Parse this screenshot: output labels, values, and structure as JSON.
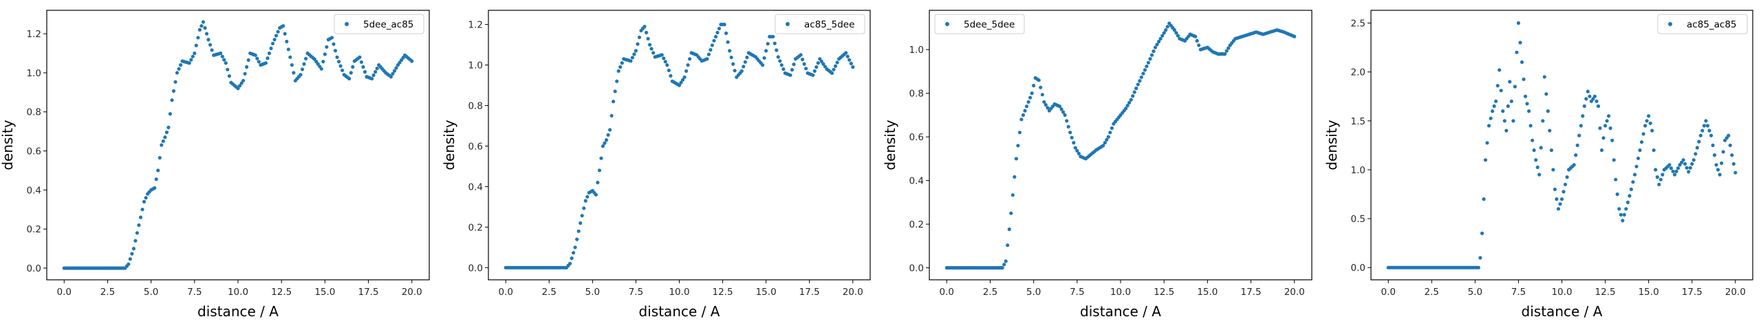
{
  "chart_data": [
    {
      "type": "scatter",
      "xlabel": "distance / A",
      "ylabel": "density",
      "xlim": [
        -1,
        21
      ],
      "ylim": [
        -0.06,
        1.32
      ],
      "xticks": [
        "0.0",
        "2.5",
        "5.0",
        "7.5",
        "10.0",
        "12.5",
        "15.0",
        "17.5",
        "20.0"
      ],
      "yticks": [
        "0.0",
        "0.2",
        "0.4",
        "0.6",
        "0.8",
        "1.0",
        "1.2"
      ],
      "legend_position": "top-right",
      "grid": false,
      "series": [
        {
          "name": "5dee_ac85",
          "color": "#1f77b4",
          "points": [
            [
              0,
              0
            ],
            [
              3.5,
              0
            ],
            [
              3.7,
              0.02
            ],
            [
              4.0,
              0.1
            ],
            [
              4.3,
              0.22
            ],
            [
              4.6,
              0.34
            ],
            [
              4.8,
              0.38
            ],
            [
              5.0,
              0.4
            ],
            [
              5.2,
              0.41
            ],
            [
              5.4,
              0.5
            ],
            [
              5.6,
              0.63
            ],
            [
              5.8,
              0.67
            ],
            [
              6.0,
              0.72
            ],
            [
              6.2,
              0.86
            ],
            [
              6.5,
              1.0
            ],
            [
              6.8,
              1.06
            ],
            [
              7.2,
              1.05
            ],
            [
              7.5,
              1.1
            ],
            [
              7.8,
              1.22
            ],
            [
              8.0,
              1.26
            ],
            [
              8.3,
              1.17
            ],
            [
              8.6,
              1.09
            ],
            [
              9.0,
              1.1
            ],
            [
              9.3,
              1.05
            ],
            [
              9.6,
              0.95
            ],
            [
              10.0,
              0.92
            ],
            [
              10.3,
              0.96
            ],
            [
              10.7,
              1.1
            ],
            [
              11.0,
              1.09
            ],
            [
              11.3,
              1.04
            ],
            [
              11.6,
              1.05
            ],
            [
              12.0,
              1.15
            ],
            [
              12.4,
              1.23
            ],
            [
              12.6,
              1.24
            ],
            [
              12.9,
              1.12
            ],
            [
              13.3,
              0.96
            ],
            [
              13.6,
              0.99
            ],
            [
              14.0,
              1.1
            ],
            [
              14.4,
              1.07
            ],
            [
              14.8,
              1.02
            ],
            [
              15.2,
              1.17
            ],
            [
              15.4,
              1.18
            ],
            [
              15.7,
              1.08
            ],
            [
              16.1,
              0.99
            ],
            [
              16.4,
              0.97
            ],
            [
              16.7,
              1.06
            ],
            [
              17.0,
              1.08
            ],
            [
              17.4,
              0.98
            ],
            [
              17.7,
              0.97
            ],
            [
              18.1,
              1.04
            ],
            [
              18.5,
              1.0
            ],
            [
              18.8,
              0.98
            ],
            [
              19.2,
              1.04
            ],
            [
              19.6,
              1.09
            ],
            [
              20.0,
              1.06
            ]
          ]
        }
      ]
    },
    {
      "type": "scatter",
      "xlabel": "distance / A",
      "ylabel": "density",
      "xlim": [
        -1,
        21
      ],
      "ylim": [
        -0.06,
        1.27
      ],
      "xticks": [
        "0.0",
        "2.5",
        "5.0",
        "7.5",
        "10.0",
        "12.5",
        "15.0",
        "17.5",
        "20.0"
      ],
      "yticks": [
        "0.0",
        "0.2",
        "0.4",
        "0.6",
        "0.8",
        "1.0",
        "1.2"
      ],
      "legend_position": "top-right",
      "grid": false,
      "series": [
        {
          "name": "ac85_5dee",
          "color": "#1f77b4",
          "points": [
            [
              0,
              0
            ],
            [
              3.5,
              0
            ],
            [
              3.7,
              0.02
            ],
            [
              4.0,
              0.1
            ],
            [
              4.3,
              0.22
            ],
            [
              4.6,
              0.33
            ],
            [
              4.8,
              0.37
            ],
            [
              5.0,
              0.38
            ],
            [
              5.2,
              0.36
            ],
            [
              5.4,
              0.48
            ],
            [
              5.6,
              0.6
            ],
            [
              5.8,
              0.63
            ],
            [
              6.0,
              0.68
            ],
            [
              6.2,
              0.82
            ],
            [
              6.5,
              0.97
            ],
            [
              6.8,
              1.03
            ],
            [
              7.2,
              1.02
            ],
            [
              7.5,
              1.07
            ],
            [
              7.8,
              1.17
            ],
            [
              8.0,
              1.19
            ],
            [
              8.3,
              1.1
            ],
            [
              8.6,
              1.04
            ],
            [
              9.0,
              1.05
            ],
            [
              9.3,
              1.0
            ],
            [
              9.6,
              0.92
            ],
            [
              10.0,
              0.9
            ],
            [
              10.3,
              0.94
            ],
            [
              10.7,
              1.06
            ],
            [
              11.0,
              1.05
            ],
            [
              11.3,
              1.02
            ],
            [
              11.6,
              1.03
            ],
            [
              12.0,
              1.12
            ],
            [
              12.4,
              1.2
            ],
            [
              12.6,
              1.2
            ],
            [
              12.9,
              1.07
            ],
            [
              13.3,
              0.94
            ],
            [
              13.6,
              0.97
            ],
            [
              14.0,
              1.06
            ],
            [
              14.4,
              1.04
            ],
            [
              14.8,
              1.0
            ],
            [
              15.2,
              1.14
            ],
            [
              15.4,
              1.14
            ],
            [
              15.7,
              1.04
            ],
            [
              16.1,
              0.96
            ],
            [
              16.4,
              0.95
            ],
            [
              16.7,
              1.03
            ],
            [
              17.0,
              1.05
            ],
            [
              17.4,
              0.96
            ],
            [
              17.7,
              0.95
            ],
            [
              18.1,
              1.03
            ],
            [
              18.5,
              0.98
            ],
            [
              18.8,
              0.96
            ],
            [
              19.2,
              1.03
            ],
            [
              19.6,
              1.06
            ],
            [
              20.0,
              0.99
            ]
          ]
        }
      ]
    },
    {
      "type": "scatter",
      "xlabel": "distance / A",
      "ylabel": "density",
      "xlim": [
        -1,
        21
      ],
      "ylim": [
        -0.055,
        1.18
      ],
      "xticks": [
        "0.0",
        "2.5",
        "5.0",
        "7.5",
        "10.0",
        "12.5",
        "15.0",
        "17.5",
        "20.0"
      ],
      "yticks": [
        "0.0",
        "0.2",
        "0.4",
        "0.6",
        "0.8",
        "1.0"
      ],
      "legend_position": "top-left",
      "grid": false,
      "series": [
        {
          "name": "5dee_5dee",
          "color": "#1f77b4",
          "points": [
            [
              0,
              0
            ],
            [
              3.2,
              0
            ],
            [
              3.4,
              0.03
            ],
            [
              3.7,
              0.25
            ],
            [
              4.0,
              0.5
            ],
            [
              4.3,
              0.68
            ],
            [
              4.6,
              0.74
            ],
            [
              4.9,
              0.8
            ],
            [
              5.1,
              0.87
            ],
            [
              5.3,
              0.86
            ],
            [
              5.6,
              0.76
            ],
            [
              5.9,
              0.72
            ],
            [
              6.2,
              0.75
            ],
            [
              6.5,
              0.74
            ],
            [
              6.8,
              0.7
            ],
            [
              7.1,
              0.62
            ],
            [
              7.4,
              0.55
            ],
            [
              7.7,
              0.51
            ],
            [
              8.0,
              0.5
            ],
            [
              8.3,
              0.52
            ],
            [
              8.6,
              0.54
            ],
            [
              9.0,
              0.56
            ],
            [
              9.3,
              0.6
            ],
            [
              9.6,
              0.66
            ],
            [
              10.0,
              0.7
            ],
            [
              10.3,
              0.73
            ],
            [
              10.6,
              0.77
            ],
            [
              11.0,
              0.84
            ],
            [
              11.3,
              0.89
            ],
            [
              11.6,
              0.94
            ],
            [
              12.0,
              1.01
            ],
            [
              12.3,
              1.05
            ],
            [
              12.6,
              1.09
            ],
            [
              12.8,
              1.12
            ],
            [
              13.1,
              1.09
            ],
            [
              13.4,
              1.05
            ],
            [
              13.7,
              1.04
            ],
            [
              14.0,
              1.07
            ],
            [
              14.3,
              1.06
            ],
            [
              14.6,
              1.0
            ],
            [
              15.0,
              1.01
            ],
            [
              15.3,
              0.99
            ],
            [
              15.6,
              0.98
            ],
            [
              16.0,
              0.98
            ],
            [
              16.3,
              1.02
            ],
            [
              16.6,
              1.05
            ],
            [
              17.0,
              1.06
            ],
            [
              17.4,
              1.07
            ],
            [
              17.8,
              1.08
            ],
            [
              18.2,
              1.07
            ],
            [
              18.6,
              1.08
            ],
            [
              19.0,
              1.09
            ],
            [
              19.4,
              1.08
            ],
            [
              19.7,
              1.07
            ],
            [
              20.0,
              1.06
            ]
          ]
        }
      ]
    },
    {
      "type": "scatter",
      "xlabel": "distance / A",
      "ylabel": "density",
      "xlim": [
        -1,
        21
      ],
      "ylim": [
        -0.125,
        2.63
      ],
      "xticks": [
        "0.0",
        "2.5",
        "5.0",
        "7.5",
        "10.0",
        "12.5",
        "15.0",
        "17.5",
        "20.0"
      ],
      "yticks": [
        "0.0",
        "0.5",
        "1.0",
        "1.5",
        "2.0",
        "2.5"
      ],
      "legend_position": "top-right",
      "grid": false,
      "series": [
        {
          "name": "ac85_ac85",
          "color": "#1f77b4",
          "points": [
            [
              0,
              0
            ],
            [
              5.2,
              0
            ],
            [
              5.3,
              0.1
            ],
            [
              5.4,
              0.35
            ],
            [
              5.5,
              0.7
            ],
            [
              5.6,
              1.1
            ],
            [
              5.8,
              1.45
            ],
            [
              6.0,
              1.6
            ],
            [
              6.2,
              1.7
            ],
            [
              6.4,
              2.02
            ],
            [
              6.6,
              1.6
            ],
            [
              6.8,
              1.4
            ],
            [
              7.0,
              1.9
            ],
            [
              7.2,
              1.5
            ],
            [
              7.4,
              2.2
            ],
            [
              7.5,
              2.5
            ],
            [
              7.7,
              2.1
            ],
            [
              7.9,
              1.75
            ],
            [
              8.1,
              1.6
            ],
            [
              8.3,
              1.3
            ],
            [
              8.5,
              1.1
            ],
            [
              8.7,
              0.95
            ],
            [
              8.9,
              1.5
            ],
            [
              9.0,
              1.95
            ],
            [
              9.2,
              1.6
            ],
            [
              9.4,
              1.2
            ],
            [
              9.6,
              0.8
            ],
            [
              9.8,
              0.6
            ],
            [
              10.0,
              0.7
            ],
            [
              10.2,
              0.85
            ],
            [
              10.4,
              1.0
            ],
            [
              10.7,
              1.05
            ],
            [
              11.0,
              1.35
            ],
            [
              11.3,
              1.65
            ],
            [
              11.5,
              1.8
            ],
            [
              11.7,
              1.7
            ],
            [
              11.9,
              1.75
            ],
            [
              12.1,
              1.65
            ],
            [
              12.3,
              1.2
            ],
            [
              12.5,
              1.45
            ],
            [
              12.7,
              1.55
            ],
            [
              12.9,
              1.3
            ],
            [
              13.1,
              0.9
            ],
            [
              13.3,
              0.6
            ],
            [
              13.5,
              0.48
            ],
            [
              13.7,
              0.6
            ],
            [
              14.0,
              0.8
            ],
            [
              14.2,
              0.95
            ],
            [
              14.5,
              1.2
            ],
            [
              14.8,
              1.45
            ],
            [
              15.0,
              1.55
            ],
            [
              15.2,
              1.4
            ],
            [
              15.4,
              1.0
            ],
            [
              15.6,
              0.85
            ],
            [
              15.9,
              1.0
            ],
            [
              16.2,
              1.05
            ],
            [
              16.5,
              0.95
            ],
            [
              16.8,
              1.05
            ],
            [
              17.0,
              1.1
            ],
            [
              17.3,
              0.98
            ],
            [
              17.6,
              1.1
            ],
            [
              18.0,
              1.35
            ],
            [
              18.3,
              1.5
            ],
            [
              18.6,
              1.35
            ],
            [
              18.9,
              1.05
            ],
            [
              19.1,
              0.95
            ],
            [
              19.4,
              1.3
            ],
            [
              19.6,
              1.35
            ],
            [
              19.8,
              1.15
            ],
            [
              20.0,
              0.97
            ]
          ]
        }
      ]
    }
  ]
}
